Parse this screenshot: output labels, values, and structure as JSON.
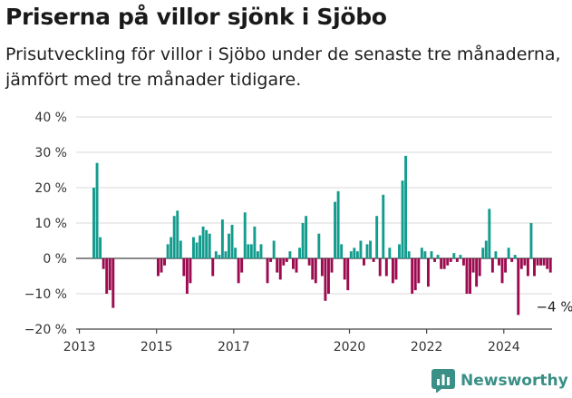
{
  "colors": {
    "up": "#139c8e",
    "down": "#9c0a4f",
    "grid": "#d9d9d9",
    "axis": "#444444",
    "brand": "#3a8f86"
  },
  "brand": {
    "name": "Newsworthy",
    "icon": "bar-chart-logo-icon"
  },
  "chart_data": {
    "type": "bar",
    "title": "Priserna på villor sjönk i Sjöbo",
    "subtitle": "Prisutveckling för villor i Sjöbo under de senaste tre månaderna, jämfört med tre månader tidigare.",
    "xlabel": "",
    "ylabel": "",
    "ylim": [
      -20,
      40
    ],
    "y_ticks": [
      -20,
      -10,
      0,
      10,
      20,
      30,
      40
    ],
    "y_tick_labels": [
      "−20 %",
      "−10 %",
      "0 %",
      "10 %",
      "20 %",
      "30 %",
      "40 %"
    ],
    "x_ticks": [
      2013,
      2015,
      2017,
      2020,
      2022,
      2024
    ],
    "x_tick_labels": [
      "2013",
      "2015",
      "2017",
      "2020",
      "2022",
      "2024"
    ],
    "x_range": [
      "2012-12",
      "2025-04"
    ],
    "grid": true,
    "legend": "none",
    "annotation": {
      "label": "−4 %",
      "x": "2025-03",
      "y": -4
    },
    "series": [
      {
        "x": [
          "2013-05",
          "2013-06",
          "2013-07",
          "2013-08",
          "2013-09",
          "2013-10",
          "2013-11",
          "2015-01",
          "2015-02",
          "2015-03",
          "2015-04",
          "2015-05",
          "2015-06",
          "2015-07",
          "2015-08",
          "2015-09",
          "2015-10",
          "2015-11",
          "2015-12",
          "2016-01",
          "2016-02",
          "2016-03",
          "2016-04",
          "2016-05",
          "2016-06",
          "2016-07",
          "2016-08",
          "2016-09",
          "2016-10",
          "2016-11",
          "2016-12",
          "2017-01",
          "2017-02",
          "2017-03",
          "2017-04",
          "2017-05",
          "2017-06",
          "2017-07",
          "2017-08",
          "2017-09",
          "2017-10",
          "2017-11",
          "2017-12",
          "2018-01",
          "2018-02",
          "2018-03",
          "2018-04",
          "2018-05",
          "2018-06",
          "2018-07",
          "2018-08",
          "2018-09",
          "2018-10",
          "2018-11",
          "2018-12",
          "2019-01",
          "2019-02",
          "2019-03",
          "2019-04",
          "2019-05",
          "2019-06",
          "2019-07",
          "2019-08",
          "2019-09",
          "2019-10",
          "2019-11",
          "2019-12",
          "2020-01",
          "2020-02",
          "2020-03",
          "2020-04",
          "2020-05",
          "2020-06",
          "2020-07",
          "2020-08",
          "2020-09",
          "2020-10",
          "2020-11",
          "2020-12",
          "2021-01",
          "2021-02",
          "2021-03",
          "2021-04",
          "2021-05",
          "2021-06",
          "2021-07",
          "2021-08",
          "2021-09",
          "2021-10",
          "2021-11",
          "2021-12",
          "2022-01",
          "2022-02",
          "2022-03",
          "2022-04",
          "2022-05",
          "2022-06",
          "2022-07",
          "2022-08",
          "2022-09",
          "2022-10",
          "2022-11",
          "2022-12",
          "2023-01",
          "2023-02",
          "2023-03",
          "2023-04",
          "2023-05",
          "2023-06",
          "2023-07",
          "2023-08",
          "2023-09",
          "2023-10",
          "2023-11",
          "2023-12",
          "2024-01",
          "2024-02",
          "2024-03",
          "2024-04",
          "2024-05",
          "2024-06",
          "2024-07",
          "2024-08",
          "2024-09",
          "2024-10",
          "2024-11",
          "2024-12",
          "2025-01",
          "2025-02",
          "2025-03"
        ],
        "values": [
          20,
          27,
          6,
          -3,
          -10,
          -9,
          -14,
          -5,
          -4,
          -2,
          4,
          6,
          12,
          13.5,
          5,
          -5,
          -10,
          -7,
          6,
          4.5,
          6.5,
          9,
          8,
          7,
          -5,
          2,
          1,
          11,
          2,
          7,
          9.5,
          3,
          -7,
          -4,
          13,
          4,
          4,
          9,
          2,
          4,
          0,
          -7,
          -1,
          5,
          -4,
          -6,
          -2,
          -1,
          2,
          -3,
          -4,
          3,
          10,
          12,
          -2,
          -6,
          -7,
          7,
          -5,
          -12,
          -10,
          -4,
          16,
          19,
          4,
          -6,
          -9,
          2,
          3,
          2,
          5,
          -2,
          4,
          5,
          -1,
          12,
          -5,
          18,
          -5,
          3,
          -7,
          -6,
          4,
          22,
          29,
          2,
          -10,
          -9,
          -7,
          3,
          2,
          -8,
          2,
          -1,
          1,
          -3,
          -3,
          -2,
          -1,
          1.5,
          -1,
          1,
          -2,
          -10,
          -10,
          -4,
          -8,
          -5,
          3,
          5,
          14,
          -4,
          2,
          -2,
          -7,
          -4,
          3,
          -1,
          1,
          -16,
          -3,
          -2,
          -5,
          10,
          -5,
          -2,
          -2,
          -2,
          -3,
          -4
        ]
      }
    ]
  }
}
